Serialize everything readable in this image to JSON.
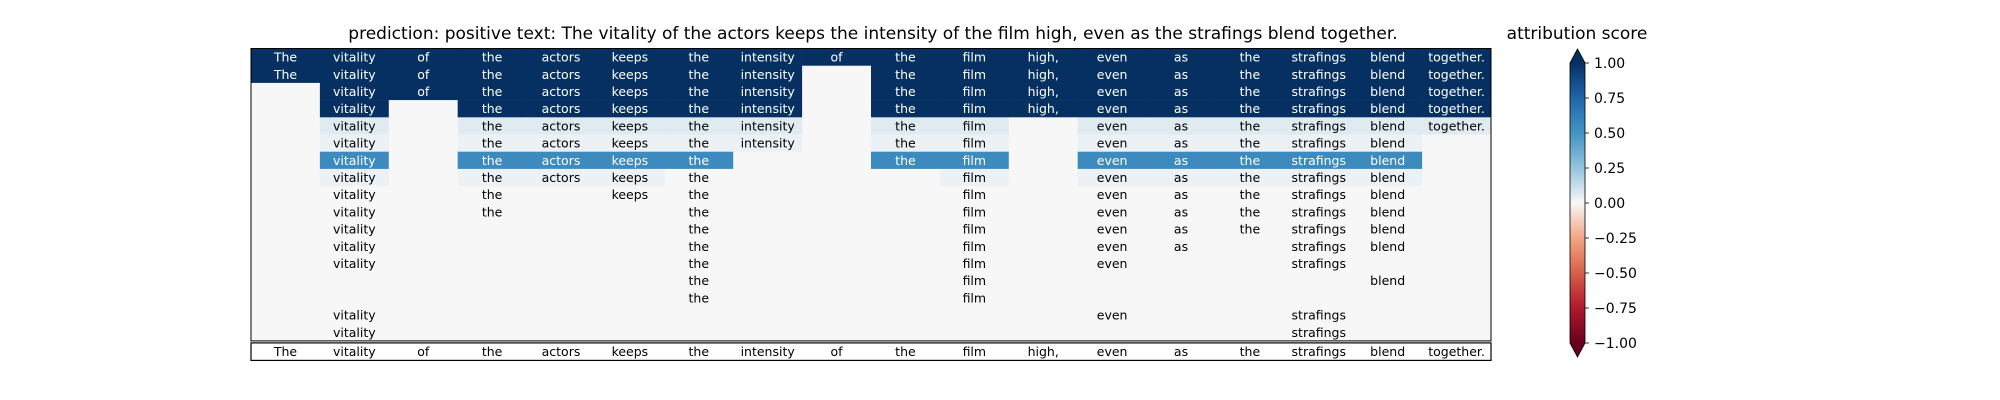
{
  "chart_data": {
    "type": "heatmap",
    "title": "prediction:  positive     text:  The vitality of the actors keeps the intensity of the film high, even as the strafings blend together.",
    "tokens": [
      "The",
      "vitality",
      "of",
      "the",
      "actors",
      "keeps",
      "the",
      "intensity",
      "of",
      "the",
      "film",
      "high,",
      "even",
      "as",
      "the",
      "strafings",
      "blend",
      "together."
    ],
    "rows": [
      [
        1,
        1,
        1,
        1,
        1,
        1,
        1,
        1,
        1,
        1,
        1,
        1,
        1,
        1,
        1,
        1,
        1,
        1
      ],
      [
        1,
        1,
        1,
        1,
        1,
        1,
        1,
        1,
        0,
        1,
        1,
        1,
        1,
        1,
        1,
        1,
        1,
        1
      ],
      [
        0,
        1,
        1,
        1,
        1,
        1,
        1,
        1,
        0,
        1,
        1,
        1,
        1,
        1,
        1,
        1,
        1,
        1
      ],
      [
        0,
        1,
        0,
        1,
        1,
        1,
        1,
        1,
        0,
        1,
        1,
        1,
        1,
        1,
        1,
        1,
        1,
        1
      ],
      [
        0,
        0.06,
        0,
        0.06,
        0.06,
        0.06,
        0.06,
        0.06,
        0,
        0.06,
        0.06,
        0,
        0.06,
        0.06,
        0.06,
        0.06,
        0.06,
        0.06
      ],
      [
        0,
        0.03,
        0,
        0.03,
        0.03,
        0.03,
        0.03,
        0.03,
        0,
        0.03,
        0.03,
        0,
        0.03,
        0.03,
        0.03,
        0.03,
        0.03,
        0
      ],
      [
        0,
        0.55,
        0,
        0.55,
        0.55,
        0.55,
        0.55,
        0,
        0,
        0.55,
        0.55,
        0,
        0.55,
        0.55,
        0.55,
        0.55,
        0.55,
        0
      ],
      [
        0,
        0.03,
        0,
        0.03,
        0.03,
        0.03,
        0,
        0,
        0,
        0,
        0.03,
        0,
        0.03,
        0.03,
        0.03,
        0.03,
        0.03,
        0
      ],
      [
        0,
        0,
        0,
        0,
        0,
        0,
        0,
        0,
        0,
        0,
        0,
        0,
        0,
        0,
        0,
        0,
        0,
        0
      ],
      [
        0,
        0,
        0,
        0,
        0,
        0,
        0,
        0,
        0,
        0,
        0,
        0,
        0,
        0,
        0,
        0,
        0,
        0
      ],
      [
        0,
        0,
        0,
        0,
        0,
        0,
        0,
        0,
        0,
        0,
        0,
        0,
        0,
        0,
        0,
        0,
        0,
        0
      ],
      [
        0,
        0,
        0,
        0,
        0,
        0,
        0,
        0,
        0,
        0,
        0,
        0,
        0,
        0,
        0,
        0,
        0,
        0
      ],
      [
        0,
        0,
        0,
        0,
        0,
        0,
        0,
        0,
        0,
        0,
        0,
        0,
        0,
        0,
        0,
        0,
        0,
        0
      ],
      [
        0,
        0,
        0,
        0,
        0,
        0,
        0,
        0,
        0,
        0,
        0,
        0,
        0,
        0,
        0,
        0,
        0,
        0
      ],
      [
        0,
        0,
        0,
        0,
        0,
        0,
        0,
        0,
        0,
        0,
        0,
        0,
        0,
        0,
        0,
        0,
        0,
        0
      ],
      [
        0,
        0,
        0,
        0,
        0,
        0,
        0,
        0,
        0,
        0,
        0,
        0,
        0,
        0,
        0,
        0,
        0,
        0
      ],
      [
        0,
        0,
        0,
        0,
        0,
        0,
        0,
        0,
        0,
        0,
        0,
        0,
        0,
        0,
        0,
        0,
        0,
        0
      ]
    ],
    "cell_text": [
      [
        "The",
        "vitality",
        "of",
        "the",
        "actors",
        "keeps",
        "the",
        "intensity",
        "of",
        "the",
        "film",
        "high,",
        "even",
        "as",
        "the",
        "strafings",
        "blend",
        "together."
      ],
      [
        "The",
        "vitality",
        "of",
        "the",
        "actors",
        "keeps",
        "the",
        "intensity",
        "",
        "the",
        "film",
        "high,",
        "even",
        "as",
        "the",
        "strafings",
        "blend",
        "together."
      ],
      [
        "",
        "vitality",
        "of",
        "the",
        "actors",
        "keeps",
        "the",
        "intensity",
        "",
        "the",
        "film",
        "high,",
        "even",
        "as",
        "the",
        "strafings",
        "blend",
        "together."
      ],
      [
        "",
        "vitality",
        "",
        "the",
        "actors",
        "keeps",
        "the",
        "intensity",
        "",
        "the",
        "film",
        "high,",
        "even",
        "as",
        "the",
        "strafings",
        "blend",
        "together."
      ],
      [
        "",
        "vitality",
        "",
        "the",
        "actors",
        "keeps",
        "the",
        "intensity",
        "",
        "the",
        "film",
        "",
        "even",
        "as",
        "the",
        "strafings",
        "blend",
        "together."
      ],
      [
        "",
        "vitality",
        "",
        "the",
        "actors",
        "keeps",
        "the",
        "intensity",
        "",
        "the",
        "film",
        "",
        "even",
        "as",
        "the",
        "strafings",
        "blend",
        ""
      ],
      [
        "",
        "vitality",
        "",
        "the",
        "actors",
        "keeps",
        "the",
        "",
        "",
        "the",
        "film",
        "",
        "even",
        "as",
        "the",
        "strafings",
        "blend",
        ""
      ],
      [
        "",
        "vitality",
        "",
        "the",
        "actors",
        "keeps",
        "the",
        "",
        "",
        "",
        "film",
        "",
        "even",
        "as",
        "the",
        "strafings",
        "blend",
        ""
      ],
      [
        "",
        "vitality",
        "",
        "the",
        "",
        "keeps",
        "the",
        "",
        "",
        "",
        "film",
        "",
        "even",
        "as",
        "the",
        "strafings",
        "blend",
        ""
      ],
      [
        "",
        "vitality",
        "",
        "the",
        "",
        "",
        "the",
        "",
        "",
        "",
        "film",
        "",
        "even",
        "as",
        "the",
        "strafings",
        "blend",
        ""
      ],
      [
        "",
        "vitality",
        "",
        "",
        "",
        "",
        "the",
        "",
        "",
        "",
        "film",
        "",
        "even",
        "as",
        "the",
        "strafings",
        "blend",
        ""
      ],
      [
        "",
        "vitality",
        "",
        "",
        "",
        "",
        "the",
        "",
        "",
        "",
        "film",
        "",
        "even",
        "as",
        "",
        "strafings",
        "blend",
        ""
      ],
      [
        "",
        "vitality",
        "",
        "",
        "",
        "",
        "the",
        "",
        "",
        "",
        "film",
        "",
        "even",
        "",
        "",
        "strafings",
        "",
        ""
      ],
      [
        "",
        "",
        "",
        "",
        "",
        "",
        "the",
        "",
        "",
        "",
        "film",
        "",
        "",
        "",
        "",
        "",
        "blend",
        ""
      ],
      [
        "",
        "",
        "",
        "",
        "",
        "",
        "the",
        "",
        "",
        "",
        "film",
        "",
        "",
        "",
        "",
        "",
        "",
        ""
      ],
      [
        "",
        "vitality",
        "",
        "",
        "",
        "",
        "",
        "",
        "",
        "",
        "",
        "",
        "even",
        "",
        "",
        "strafings",
        "",
        ""
      ],
      [
        "",
        "vitality",
        "",
        "",
        "",
        "",
        "",
        "",
        "",
        "",
        "",
        "",
        "",
        "",
        "",
        "strafings",
        "",
        ""
      ]
    ],
    "bottom_row": [
      "The",
      "vitality",
      "of",
      "the",
      "actors",
      "keeps",
      "the",
      "intensity",
      "of",
      "the",
      "film",
      "high,",
      "even",
      "as",
      "the",
      "strafings",
      "blend",
      "together."
    ],
    "colorbar": {
      "label": "attribution score",
      "range": [
        -1,
        1
      ],
      "ticks": [
        "1.00",
        "0.75",
        "0.50",
        "0.25",
        "0.00",
        "−0.25",
        "−0.50",
        "−0.75",
        "−1.00"
      ],
      "colormap": "RdBu",
      "extend": "both"
    }
  }
}
